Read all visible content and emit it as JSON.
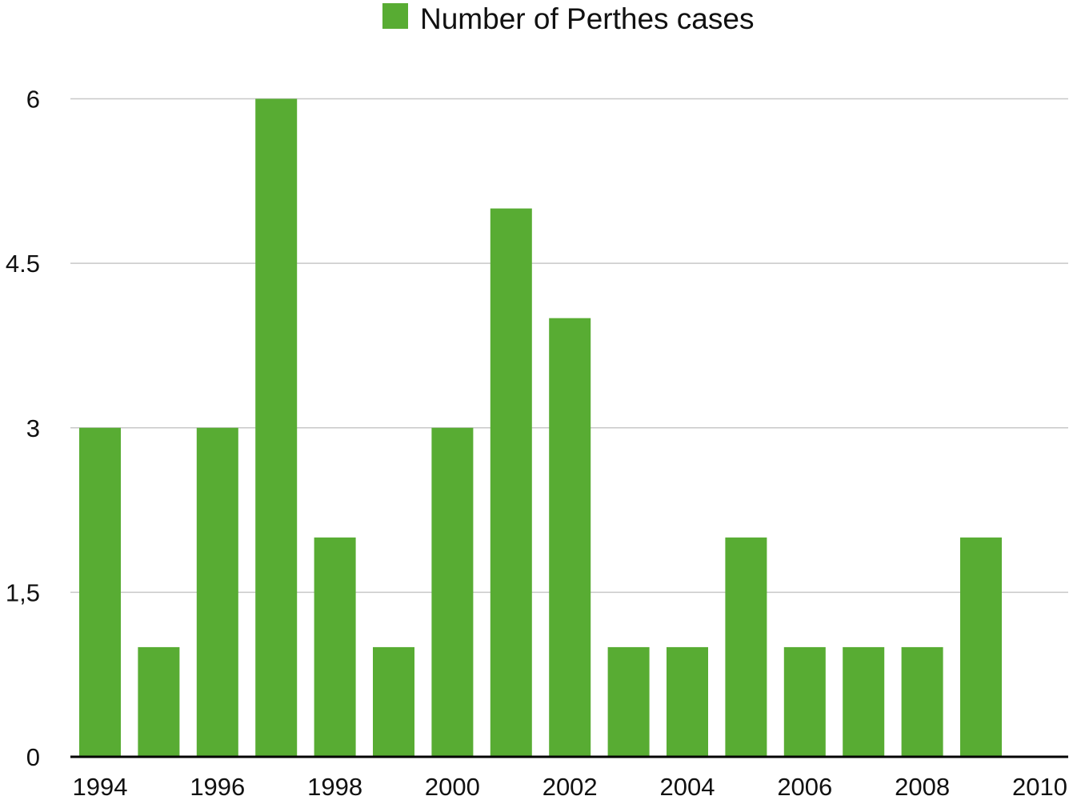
{
  "chart_data": {
    "type": "bar",
    "legend": {
      "label": "Number of Perthes cases",
      "position": "top"
    },
    "series": [
      {
        "name": "Number of Perthes cases",
        "color": "#58ac33",
        "categories": [
          "1994",
          "1995",
          "1996",
          "1997",
          "1998",
          "1999",
          "2000",
          "2001",
          "2002",
          "2003",
          "2004",
          "2005",
          "2006",
          "2007",
          "2008",
          "2009",
          "2010"
        ],
        "values": [
          3,
          1,
          3,
          6,
          2,
          1,
          3,
          5,
          4,
          1,
          1,
          2,
          1,
          1,
          1,
          2,
          0
        ]
      }
    ],
    "x_tick_labels": [
      "1994",
      "1996",
      "1998",
      "2000",
      "2002",
      "2004",
      "2006",
      "2008",
      "2010"
    ],
    "y_tick_labels": [
      "0",
      "1,5",
      "3",
      "4.5",
      "6"
    ],
    "y_ticks": [
      0,
      1.5,
      3,
      4.5,
      6
    ],
    "ylim": [
      0,
      6
    ],
    "grid": true,
    "gridline_color": "#c8c8c8",
    "axis_color": "#000000"
  }
}
